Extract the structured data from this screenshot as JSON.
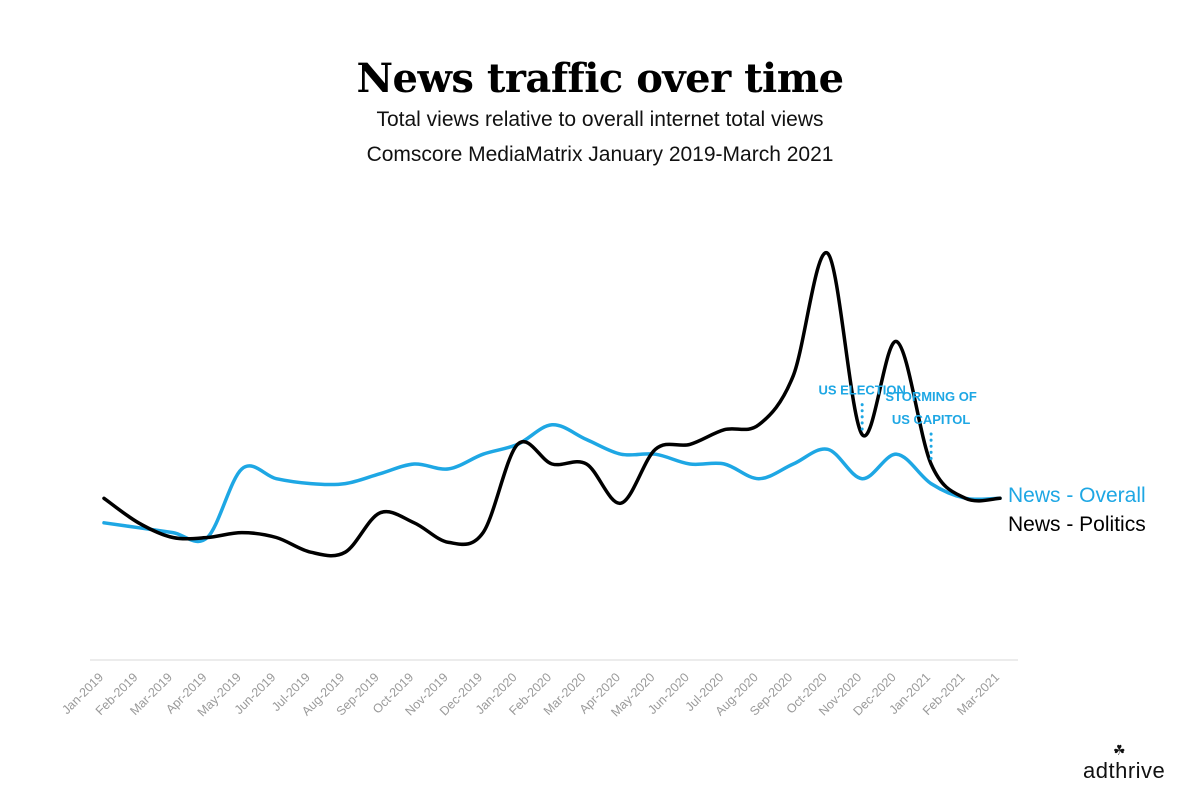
{
  "chart_data": {
    "type": "line",
    "title": "News traffic over time",
    "subtitle": [
      "Total views relative to overall internet total views",
      "Comscore MediaMatrix January 2019-March 2021"
    ],
    "xlabel": "",
    "ylabel": "",
    "grid": false,
    "ylim": [
      0,
      100
    ],
    "categories": [
      "Jan-2019",
      "Feb-2019",
      "Mar-2019",
      "Apr-2019",
      "May-2019",
      "Jun-2019",
      "Jul-2019",
      "Aug-2019",
      "Sep-2019",
      "Oct-2019",
      "Nov-2019",
      "Dec-2019",
      "Jan-2020",
      "Feb-2020",
      "Mar-2020",
      "Apr-2020",
      "May-2020",
      "Jun-2020",
      "Jul-2020",
      "Aug-2020",
      "Sep-2020",
      "Oct-2020",
      "Nov-2020",
      "Dec-2020",
      "Jan-2021",
      "Feb-2021",
      "Mar-2021"
    ],
    "series": [
      {
        "name": "News - Overall",
        "color": "#1ea7e4",
        "values": [
          28,
          27,
          26,
          25,
          39,
          37,
          36,
          36,
          38,
          40,
          39,
          42,
          44,
          48,
          45,
          42,
          42,
          40,
          40,
          37,
          40,
          43,
          37,
          42,
          36,
          33,
          33
        ]
      },
      {
        "name": "News - Politics",
        "color": "#000000",
        "values": [
          33,
          28,
          25,
          25,
          26,
          25,
          22,
          22,
          30,
          28,
          24,
          26,
          44,
          40,
          40,
          32,
          43,
          44,
          47,
          48,
          58,
          83,
          46,
          65,
          40,
          33,
          33
        ]
      }
    ],
    "annotations": [
      {
        "text": "US ELECTION",
        "category": "Nov-2020",
        "color": "#1ea7e4"
      },
      {
        "text": [
          "STORMING OF",
          "US CAPITOL"
        ],
        "category": "Jan-2021",
        "color": "#1ea7e4"
      }
    ],
    "legend": "right-inline"
  },
  "brand": {
    "logo_text": "adthrive"
  }
}
